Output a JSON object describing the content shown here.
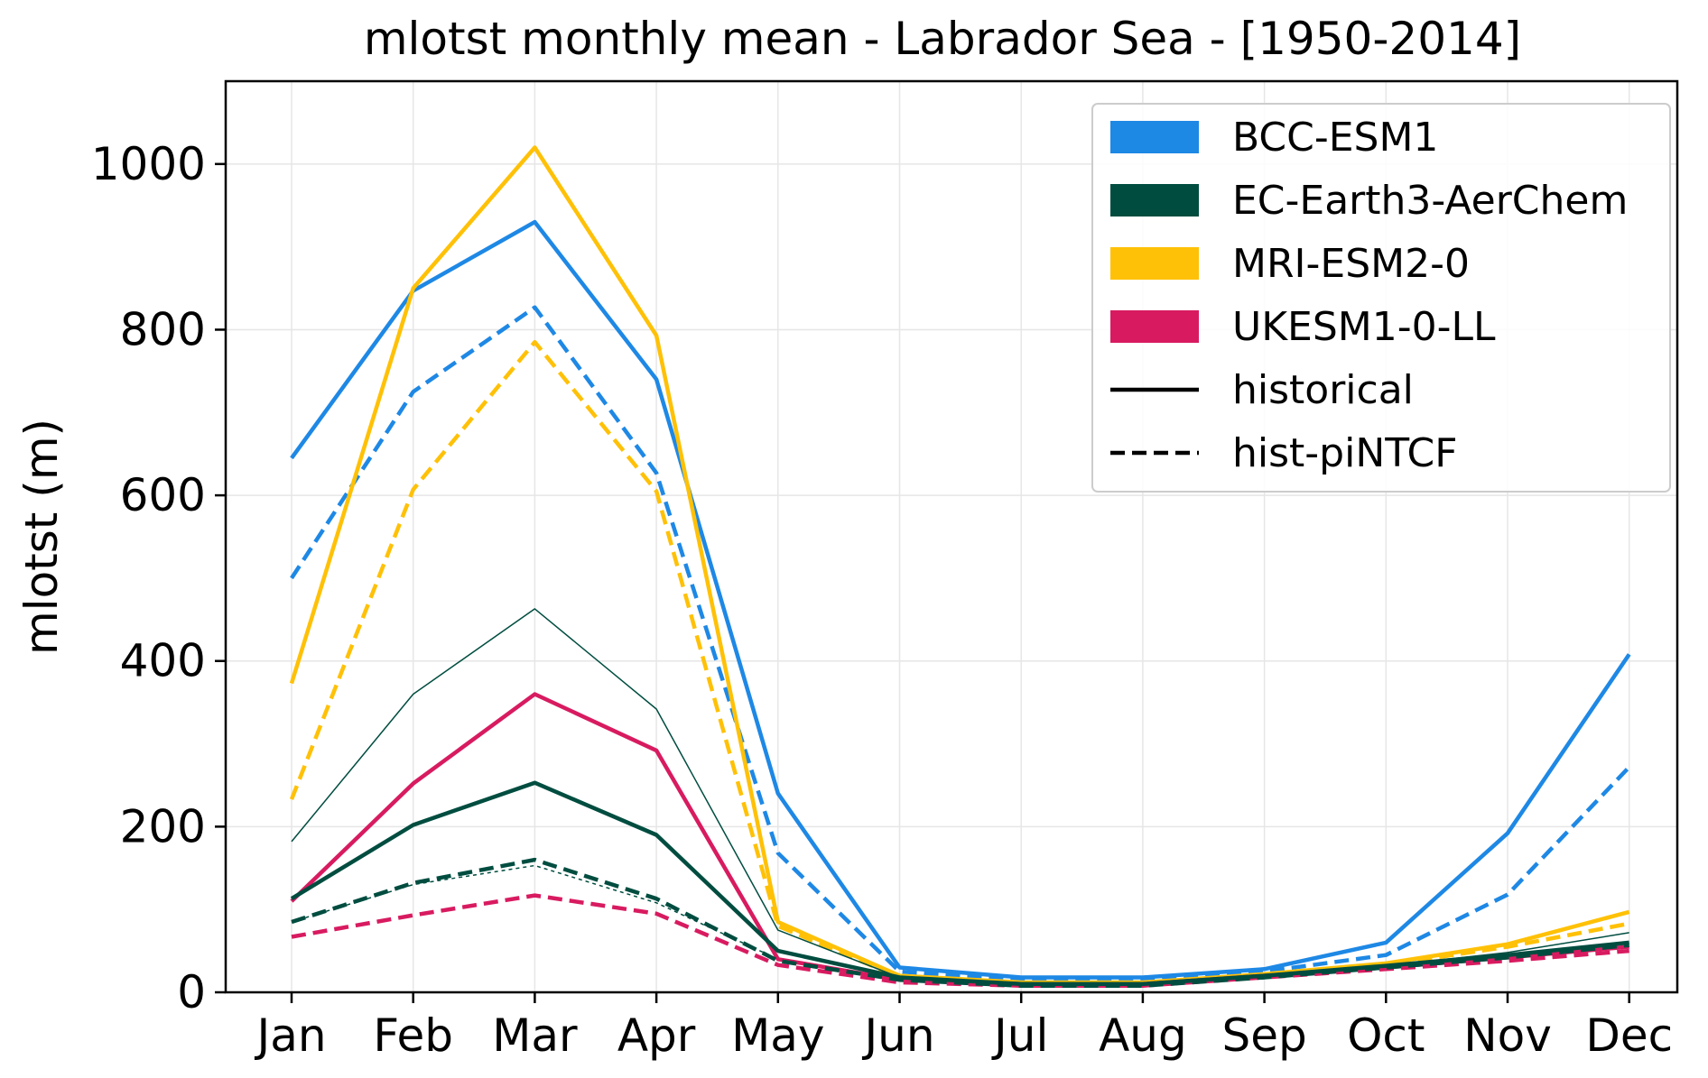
{
  "chart_data": {
    "type": "line",
    "title": "mlotst monthly mean - Labrador Sea - [1950-2014]",
    "xlabel": "",
    "ylabel": "mlotst (m)",
    "ylim": [
      0,
      1100
    ],
    "yticks": [
      0,
      200,
      400,
      600,
      800,
      1000
    ],
    "categories": [
      "Jan",
      "Feb",
      "Mar",
      "Apr",
      "May",
      "Jun",
      "Jul",
      "Aug",
      "Sep",
      "Oct",
      "Nov",
      "Dec"
    ],
    "grid": true,
    "legend_position": "top-right",
    "legend": [
      {
        "label": "BCC-ESM1",
        "kind": "patch",
        "color": "#1e88e5"
      },
      {
        "label": "EC-Earth3-AerChem",
        "kind": "patch",
        "color": "#004d40"
      },
      {
        "label": "MRI-ESM2-0",
        "kind": "patch",
        "color": "#ffc107"
      },
      {
        "label": "UKESM1-0-LL",
        "kind": "patch",
        "color": "#d81b60"
      },
      {
        "label": "historical",
        "kind": "line",
        "style": "solid",
        "color": "#000000"
      },
      {
        "label": "hist-piNTCF",
        "kind": "line",
        "style": "dashed",
        "color": "#000000"
      }
    ],
    "series": [
      {
        "model": "BCC-ESM1",
        "experiment": "historical",
        "color": "#1e88e5",
        "style": "solid",
        "width": "thick",
        "values": [
          645,
          847,
          930,
          740,
          240,
          30,
          18,
          18,
          28,
          60,
          192,
          408
        ]
      },
      {
        "model": "BCC-ESM1",
        "experiment": "hist-piNTCF",
        "color": "#1e88e5",
        "style": "dashed",
        "width": "thick",
        "values": [
          500,
          725,
          827,
          627,
          168,
          25,
          15,
          15,
          25,
          45,
          118,
          272
        ]
      },
      {
        "model": "MRI-ESM2-0",
        "experiment": "historical",
        "color": "#ffc107",
        "style": "solid",
        "width": "thick",
        "values": [
          373,
          850,
          1020,
          793,
          85,
          20,
          12,
          12,
          22,
          35,
          58,
          97
        ]
      },
      {
        "model": "MRI-ESM2-0",
        "experiment": "hist-piNTCF",
        "color": "#ffc107",
        "style": "dashed",
        "width": "thick",
        "values": [
          233,
          607,
          785,
          605,
          80,
          18,
          11,
          11,
          20,
          33,
          55,
          83
        ]
      },
      {
        "model": "EC-Earth3-AerChem",
        "experiment": "historical",
        "color": "#004d40",
        "style": "solid",
        "width": "thin",
        "values": [
          182,
          360,
          463,
          342,
          75,
          18,
          10,
          10,
          20,
          32,
          48,
          72
        ]
      },
      {
        "model": "EC-Earth3-AerChem",
        "experiment": "hist-piNTCF",
        "color": "#004d40",
        "style": "dashed",
        "width": "thin",
        "values": [
          85,
          130,
          153,
          108,
          40,
          14,
          8,
          8,
          18,
          30,
          42,
          55
        ]
      },
      {
        "model": "UKESM1-0-LL",
        "experiment": "historical",
        "color": "#d81b60",
        "style": "solid",
        "width": "thick",
        "values": [
          110,
          252,
          360,
          292,
          40,
          15,
          10,
          10,
          20,
          30,
          42,
          55
        ]
      },
      {
        "model": "UKESM1-0-LL",
        "experiment": "hist-piNTCF",
        "color": "#d81b60",
        "style": "dashed",
        "width": "thick",
        "values": [
          67,
          93,
          117,
          95,
          33,
          12,
          8,
          8,
          18,
          28,
          38,
          50
        ]
      },
      {
        "model": "EC-Earth3-AerChem",
        "experiment": "historical",
        "color": "#004d40",
        "style": "solid",
        "width": "thick",
        "values": [
          113,
          202,
          253,
          190,
          50,
          18,
          10,
          10,
          20,
          32,
          45,
          60
        ]
      },
      {
        "model": "EC-Earth3-AerChem",
        "experiment": "hist-piNTCF",
        "color": "#004d40",
        "style": "dashed",
        "width": "thick",
        "values": [
          85,
          132,
          160,
          113,
          38,
          15,
          8,
          8,
          18,
          30,
          42,
          57
        ]
      }
    ]
  }
}
